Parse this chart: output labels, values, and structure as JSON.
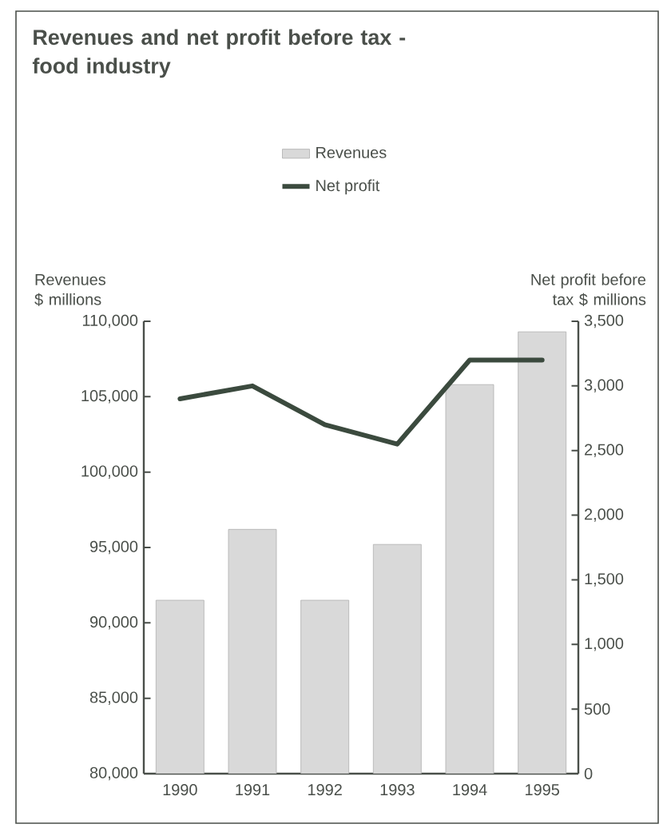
{
  "chart_data": {
    "type": "bar",
    "title": "Revenues and net profit before tax - food industry",
    "categories": [
      "1990",
      "1991",
      "1992",
      "1993",
      "1994",
      "1995"
    ],
    "series": [
      {
        "name": "Revenues",
        "color": "#d9d9d9",
        "values": [
          91500,
          96200,
          91500,
          95200,
          105800,
          109300
        ]
      },
      {
        "name": "Net profit",
        "type": "line",
        "axis": "y2",
        "color": "#3b4a3e",
        "values": [
          2900,
          3000,
          2700,
          2550,
          3200,
          3200
        ]
      }
    ],
    "ylabel": "Revenues $ millions",
    "y2label": "Net profit before tax $ millions",
    "ylim": [
      80000,
      110000
    ],
    "yticks": [
      {
        "value": 80000,
        "label": "80,000"
      },
      {
        "value": 85000,
        "label": "85,000"
      },
      {
        "value": 90000,
        "label": "90,000"
      },
      {
        "value": 95000,
        "label": "95,000"
      },
      {
        "value": 100000,
        "label": "100,000"
      },
      {
        "value": 105000,
        "label": "105,000"
      },
      {
        "value": 110000,
        "label": "110,000"
      }
    ],
    "y2lim": [
      0,
      3500
    ],
    "y2ticks": [
      0,
      500,
      {
        "value": 1000,
        "label": "1,000"
      },
      {
        "value": 1500,
        "label": "1,500"
      },
      {
        "value": 2000,
        "label": "2,000"
      },
      {
        "value": 2500,
        "label": "2,500"
      },
      {
        "value": 3000,
        "label": "3,000"
      },
      {
        "value": 3500,
        "label": "3,500"
      }
    ],
    "legend": "top",
    "grid": false,
    "line_style": "solid",
    "marker": "none"
  }
}
